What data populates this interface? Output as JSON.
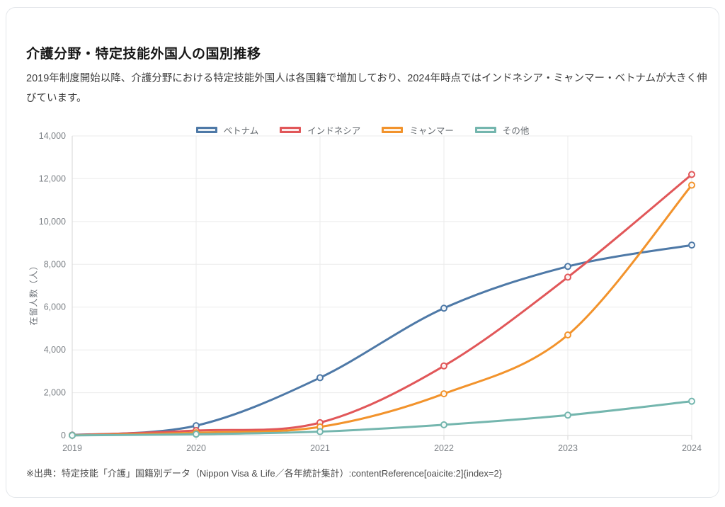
{
  "card": {
    "title": "介護分野・特定技能外国人の国別推移",
    "subtitle": "2019年制度開始以降、介護分野における特定技能外国人は各国籍で増加しており、2024年時点ではインドネシア・ミャンマー・ベトナムが大きく伸びています。",
    "source_note": "※出典：特定技能「介護」国籍別データ（Nippon Visa & Life／各年統計集計）:contentReference[oaicite:2]{index=2}"
  },
  "chart_data": {
    "type": "line",
    "categories": [
      "2019",
      "2020",
      "2021",
      "2022",
      "2023",
      "2024"
    ],
    "series": [
      {
        "key": "vietnam",
        "name": "ベトナム",
        "color": "#4e79a7",
        "values": [
          20,
          460,
          2700,
          5950,
          7900,
          8900
        ]
      },
      {
        "key": "indonesia",
        "name": "インドネシア",
        "color": "#e15759",
        "values": [
          10,
          230,
          600,
          3250,
          7400,
          12200
        ]
      },
      {
        "key": "myanmar",
        "name": "ミャンマー",
        "color": "#f2932c",
        "values": [
          10,
          130,
          400,
          1950,
          4700,
          11700
        ]
      },
      {
        "key": "others",
        "name": "その他",
        "color": "#74b6ae",
        "values": [
          5,
          60,
          180,
          500,
          950,
          1600
        ]
      }
    ],
    "xlabel": "",
    "ylabel": "在留人数（人）",
    "ylim": [
      0,
      14000
    ],
    "ytick_step": 2000,
    "grid": true,
    "legend_position": "top",
    "curve": "smooth",
    "colors": {
      "grid_line": "#ebebeb",
      "axis_line": "#d6d6d6",
      "tick_text": "#7d8287",
      "point_fill": "#ffffff"
    }
  }
}
